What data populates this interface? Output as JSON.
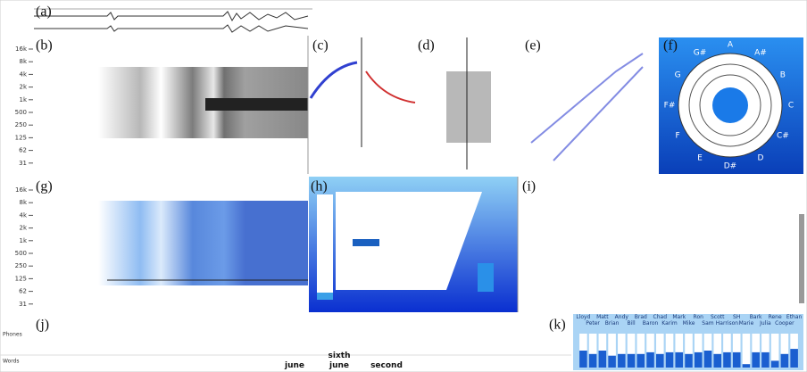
{
  "panels": [
    "(a)",
    "(b)",
    "(c)",
    "(d)",
    "(e)",
    "(f)",
    "(g)",
    "(h)",
    "(i)",
    "(j)",
    "(k)"
  ],
  "freq_labels": [
    "16k",
    "8k",
    "4k",
    "2k",
    "1k",
    "500",
    "250",
    "125",
    "62",
    "31"
  ],
  "phones_label": "Phones",
  "words_label": "Words",
  "words": [
    "sixth",
    "june",
    "june",
    "second"
  ],
  "chroma_notes": [
    "A",
    "A#",
    "B",
    "C",
    "C#",
    "D",
    "D#",
    "E",
    "F",
    "F#",
    "G",
    "G#"
  ],
  "speakers": {
    "names": [
      "Lloyd",
      "Peter",
      "Matt",
      "Brian",
      "Andy",
      "Bill",
      "Brad",
      "Baron",
      "Chad",
      "Karim",
      "Mark",
      "Mike",
      "Ron",
      "Sam",
      "Scott",
      "Harrison",
      "SH",
      "Marie",
      "Bark",
      "Julia",
      "Rene",
      "Cooper",
      "Ethan"
    ],
    "levels": [
      0.5,
      0.4,
      0.5,
      0.35,
      0.4,
      0.4,
      0.4,
      0.45,
      0.4,
      0.45,
      0.45,
      0.4,
      0.45,
      0.5,
      0.4,
      0.45,
      0.45,
      0.1,
      0.45,
      0.45,
      0.2,
      0.4,
      0.55
    ]
  }
}
